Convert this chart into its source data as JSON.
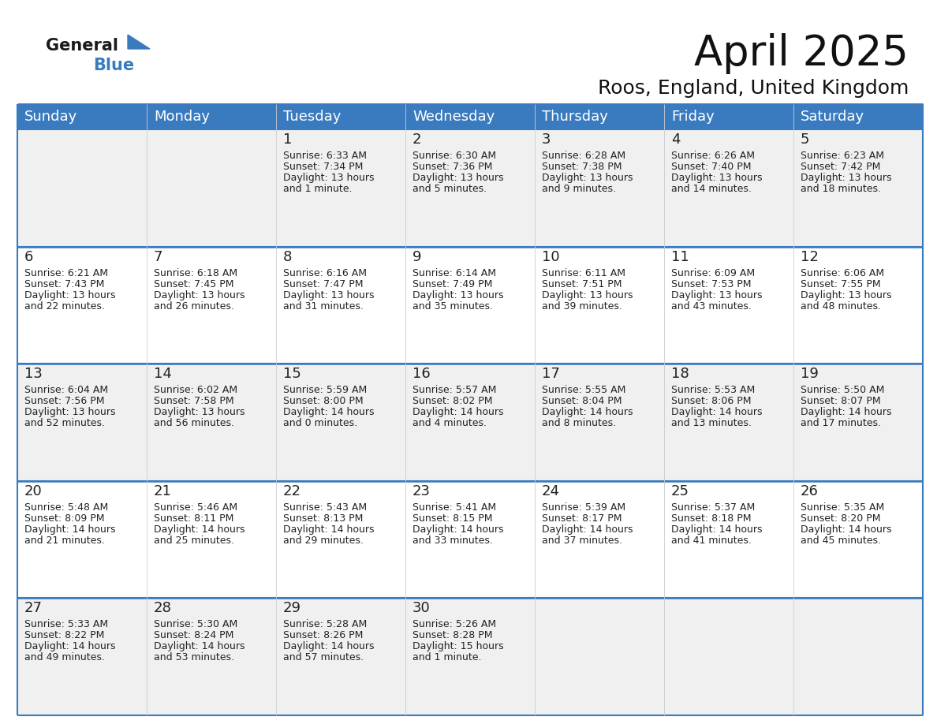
{
  "title": "April 2025",
  "subtitle": "Roos, England, United Kingdom",
  "header_color": "#3a7bbf",
  "header_text_color": "#ffffff",
  "cell_bg_even": "#f0f0f0",
  "cell_bg_odd": "#ffffff",
  "border_color": "#3a7bbf",
  "text_color": "#222222",
  "day_names": [
    "Sunday",
    "Monday",
    "Tuesday",
    "Wednesday",
    "Thursday",
    "Friday",
    "Saturday"
  ],
  "title_fontsize": 38,
  "subtitle_fontsize": 18,
  "header_fontsize": 13,
  "day_num_fontsize": 13,
  "cell_fontsize": 9,
  "days": [
    {
      "date": 1,
      "col": 2,
      "row": 0,
      "sunrise": "6:33 AM",
      "sunset": "7:34 PM",
      "daylight_h": "13 hours",
      "daylight_m": "and 1 minute."
    },
    {
      "date": 2,
      "col": 3,
      "row": 0,
      "sunrise": "6:30 AM",
      "sunset": "7:36 PM",
      "daylight_h": "13 hours",
      "daylight_m": "and 5 minutes."
    },
    {
      "date": 3,
      "col": 4,
      "row": 0,
      "sunrise": "6:28 AM",
      "sunset": "7:38 PM",
      "daylight_h": "13 hours",
      "daylight_m": "and 9 minutes."
    },
    {
      "date": 4,
      "col": 5,
      "row": 0,
      "sunrise": "6:26 AM",
      "sunset": "7:40 PM",
      "daylight_h": "13 hours",
      "daylight_m": "and 14 minutes."
    },
    {
      "date": 5,
      "col": 6,
      "row": 0,
      "sunrise": "6:23 AM",
      "sunset": "7:42 PM",
      "daylight_h": "13 hours",
      "daylight_m": "and 18 minutes."
    },
    {
      "date": 6,
      "col": 0,
      "row": 1,
      "sunrise": "6:21 AM",
      "sunset": "7:43 PM",
      "daylight_h": "13 hours",
      "daylight_m": "and 22 minutes."
    },
    {
      "date": 7,
      "col": 1,
      "row": 1,
      "sunrise": "6:18 AM",
      "sunset": "7:45 PM",
      "daylight_h": "13 hours",
      "daylight_m": "and 26 minutes."
    },
    {
      "date": 8,
      "col": 2,
      "row": 1,
      "sunrise": "6:16 AM",
      "sunset": "7:47 PM",
      "daylight_h": "13 hours",
      "daylight_m": "and 31 minutes."
    },
    {
      "date": 9,
      "col": 3,
      "row": 1,
      "sunrise": "6:14 AM",
      "sunset": "7:49 PM",
      "daylight_h": "13 hours",
      "daylight_m": "and 35 minutes."
    },
    {
      "date": 10,
      "col": 4,
      "row": 1,
      "sunrise": "6:11 AM",
      "sunset": "7:51 PM",
      "daylight_h": "13 hours",
      "daylight_m": "and 39 minutes."
    },
    {
      "date": 11,
      "col": 5,
      "row": 1,
      "sunrise": "6:09 AM",
      "sunset": "7:53 PM",
      "daylight_h": "13 hours",
      "daylight_m": "and 43 minutes."
    },
    {
      "date": 12,
      "col": 6,
      "row": 1,
      "sunrise": "6:06 AM",
      "sunset": "7:55 PM",
      "daylight_h": "13 hours",
      "daylight_m": "and 48 minutes."
    },
    {
      "date": 13,
      "col": 0,
      "row": 2,
      "sunrise": "6:04 AM",
      "sunset": "7:56 PM",
      "daylight_h": "13 hours",
      "daylight_m": "and 52 minutes."
    },
    {
      "date": 14,
      "col": 1,
      "row": 2,
      "sunrise": "6:02 AM",
      "sunset": "7:58 PM",
      "daylight_h": "13 hours",
      "daylight_m": "and 56 minutes."
    },
    {
      "date": 15,
      "col": 2,
      "row": 2,
      "sunrise": "5:59 AM",
      "sunset": "8:00 PM",
      "daylight_h": "14 hours",
      "daylight_m": "and 0 minutes."
    },
    {
      "date": 16,
      "col": 3,
      "row": 2,
      "sunrise": "5:57 AM",
      "sunset": "8:02 PM",
      "daylight_h": "14 hours",
      "daylight_m": "and 4 minutes."
    },
    {
      "date": 17,
      "col": 4,
      "row": 2,
      "sunrise": "5:55 AM",
      "sunset": "8:04 PM",
      "daylight_h": "14 hours",
      "daylight_m": "and 8 minutes."
    },
    {
      "date": 18,
      "col": 5,
      "row": 2,
      "sunrise": "5:53 AM",
      "sunset": "8:06 PM",
      "daylight_h": "14 hours",
      "daylight_m": "and 13 minutes."
    },
    {
      "date": 19,
      "col": 6,
      "row": 2,
      "sunrise": "5:50 AM",
      "sunset": "8:07 PM",
      "daylight_h": "14 hours",
      "daylight_m": "and 17 minutes."
    },
    {
      "date": 20,
      "col": 0,
      "row": 3,
      "sunrise": "5:48 AM",
      "sunset": "8:09 PM",
      "daylight_h": "14 hours",
      "daylight_m": "and 21 minutes."
    },
    {
      "date": 21,
      "col": 1,
      "row": 3,
      "sunrise": "5:46 AM",
      "sunset": "8:11 PM",
      "daylight_h": "14 hours",
      "daylight_m": "and 25 minutes."
    },
    {
      "date": 22,
      "col": 2,
      "row": 3,
      "sunrise": "5:43 AM",
      "sunset": "8:13 PM",
      "daylight_h": "14 hours",
      "daylight_m": "and 29 minutes."
    },
    {
      "date": 23,
      "col": 3,
      "row": 3,
      "sunrise": "5:41 AM",
      "sunset": "8:15 PM",
      "daylight_h": "14 hours",
      "daylight_m": "and 33 minutes."
    },
    {
      "date": 24,
      "col": 4,
      "row": 3,
      "sunrise": "5:39 AM",
      "sunset": "8:17 PM",
      "daylight_h": "14 hours",
      "daylight_m": "and 37 minutes."
    },
    {
      "date": 25,
      "col": 5,
      "row": 3,
      "sunrise": "5:37 AM",
      "sunset": "8:18 PM",
      "daylight_h": "14 hours",
      "daylight_m": "and 41 minutes."
    },
    {
      "date": 26,
      "col": 6,
      "row": 3,
      "sunrise": "5:35 AM",
      "sunset": "8:20 PM",
      "daylight_h": "14 hours",
      "daylight_m": "and 45 minutes."
    },
    {
      "date": 27,
      "col": 0,
      "row": 4,
      "sunrise": "5:33 AM",
      "sunset": "8:22 PM",
      "daylight_h": "14 hours",
      "daylight_m": "and 49 minutes."
    },
    {
      "date": 28,
      "col": 1,
      "row": 4,
      "sunrise": "5:30 AM",
      "sunset": "8:24 PM",
      "daylight_h": "14 hours",
      "daylight_m": "and 53 minutes."
    },
    {
      "date": 29,
      "col": 2,
      "row": 4,
      "sunrise": "5:28 AM",
      "sunset": "8:26 PM",
      "daylight_h": "14 hours",
      "daylight_m": "and 57 minutes."
    },
    {
      "date": 30,
      "col": 3,
      "row": 4,
      "sunrise": "5:26 AM",
      "sunset": "8:28 PM",
      "daylight_h": "15 hours",
      "daylight_m": "and 1 minute."
    }
  ]
}
